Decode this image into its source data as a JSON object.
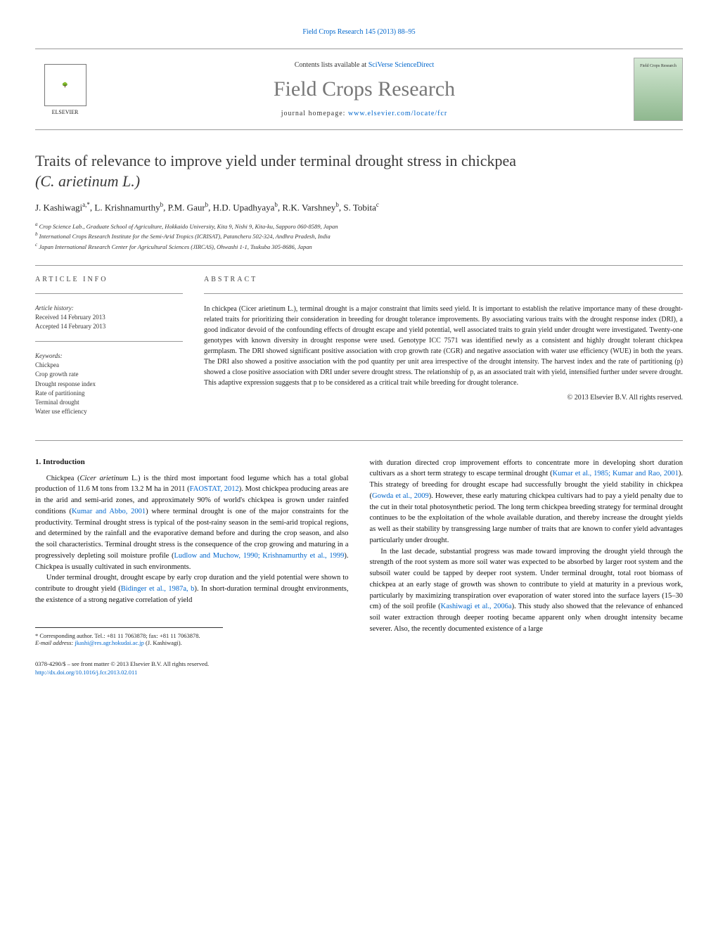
{
  "header": {
    "citation_prefix": "Field Crops Research 145 (2013) 88–95",
    "contents_text": "Contents lists available at",
    "contents_link": "SciVerse ScienceDirect",
    "journal_title": "Field Crops Research",
    "homepage_text": "journal homepage:",
    "homepage_url": "www.elsevier.com/locate/fcr",
    "publisher": "ELSEVIER",
    "cover_label": "Field Crops Research"
  },
  "article": {
    "title_line1": "Traits of relevance to improve yield under terminal drought stress in chickpea",
    "title_line2": "(C. arietinum L.)",
    "authors_html": "J. Kashiwagi",
    "author_a_sup": "a,*",
    "author_b": ", L. Krishnamurthy",
    "author_b_sup": "b",
    "author_c": ", P.M. Gaur",
    "author_c_sup": "b",
    "author_d": ", H.D. Upadhyaya",
    "author_d_sup": "b",
    "author_e": ", R.K. Varshney",
    "author_e_sup": "b",
    "author_f": ", S. Tobita",
    "author_f_sup": "c",
    "affil_a": "Crop Science Lab., Graduate School of Agriculture, Hokkaido University, Kita 9, Nishi 9, Kita-ku, Sapporo 060-8589, Japan",
    "affil_b": "International Crops Research Institute for the Semi-Arid Tropics (ICRISAT), Patancheru 502-324, Andhra Pradesh, India",
    "affil_c": "Japan International Research Center for Agricultural Sciences (JIRCAS), Ohwashi 1-1, Tsukuba 305-8686, Japan"
  },
  "article_info": {
    "heading": "ARTICLE INFO",
    "history_label": "Article history:",
    "received": "Received 14 February 2013",
    "accepted": "Accepted 14 February 2013",
    "keywords_label": "Keywords:",
    "keywords": [
      "Chickpea",
      "Crop growth rate",
      "Drought response index",
      "Rate of partitioning",
      "Terminal drought",
      "Water use efficiency"
    ]
  },
  "abstract": {
    "heading": "ABSTRACT",
    "text": "In chickpea (Cicer arietinum L.), terminal drought is a major constraint that limits seed yield. It is important to establish the relative importance many of these drought-related traits for prioritizing their consideration in breeding for drought tolerance improvements. By associating various traits with the drought response index (DRI), a good indicator devoid of the confounding effects of drought escape and yield potential, well associated traits to grain yield under drought were investigated. Twenty-one genotypes with known diversity in drought response were used. Genotype ICC 7571 was identified newly as a consistent and highly drought tolerant chickpea germplasm. The DRI showed significant positive association with crop growth rate (CGR) and negative association with water use efficiency (WUE) in both the years. The DRI also showed a positive association with the pod quantity per unit area irrespective of the drought intensity. The harvest index and the rate of partitioning (p) showed a close positive association with DRI under severe drought stress. The relationship of p, as an associated trait with yield, intensified further under severe drought. This adaptive expression suggests that p to be considered as a critical trait while breeding for drought tolerance.",
    "copyright": "© 2013 Elsevier B.V. All rights reserved."
  },
  "body": {
    "intro_heading": "1. Introduction",
    "col1_p1_a": "Chickpea (",
    "col1_p1_species": "Cicer arietinum",
    "col1_p1_b": " L.) is the third most important food legume which has a total global production of 11.6 M tons from 13.2 M ha in 2011 (",
    "col1_p1_ref1": "FAOSTAT, 2012",
    "col1_p1_c": "). Most chickpea producing areas are in the arid and semi-arid zones, and approximately 90% of world's chickpea is grown under rainfed conditions (",
    "col1_p1_ref2": "Kumar and Abbo, 2001",
    "col1_p1_d": ") where terminal drought is one of the major constraints for the productivity. Terminal drought stress is typical of the post-rainy season in the semi-arid tropical regions, and determined by the rainfall and the evaporative demand before and during the crop season, and also the soil characteristics. Terminal drought stress is the consequence of the crop growing and maturing in a progressively depleting soil moisture profile (",
    "col1_p1_ref3": "Ludlow and Muchow, 1990; Krishnamurthy et al., 1999",
    "col1_p1_e": "). Chickpea is usually cultivated in such environments.",
    "col1_p2_a": "Under terminal drought, drought escape by early crop duration and the yield potential were shown to contribute to drought yield (",
    "col1_p2_ref1": "Bidinger et al., 1987a, b",
    "col1_p2_b": "). In short-duration terminal drought environments, the existence of a strong negative correlation of yield",
    "col2_p1_a": "with duration directed crop improvement efforts to concentrate more in developing short duration cultivars as a short term strategy to escape terminal drought (",
    "col2_p1_ref1": "Kumar et al., 1985; Kumar and Rao, 2001",
    "col2_p1_b": "). This strategy of breeding for drought escape had successfully brought the yield stability in chickpea (",
    "col2_p1_ref2": "Gowda et al., 2009",
    "col2_p1_c": "). However, these early maturing chickpea cultivars had to pay a yield penalty due to the cut in their total photosynthetic period. The long term chickpea breeding strategy for terminal drought continues to be the exploitation of the whole available duration, and thereby increase the drought yields as well as their stability by transgressing large number of traits that are known to confer yield advantages particularly under drought.",
    "col2_p2_a": "In the last decade, substantial progress was made toward improving the drought yield through the strength of the root system as more soil water was expected to be absorbed by larger root system and the subsoil water could be tapped by deeper root system. Under terminal drought, total root biomass of chickpea at an early stage of growth was shown to contribute to yield at maturity in a previous work, particularly by maximizing transpiration over evaporation of water stored into the surface layers (15–30 cm) of the soil profile (",
    "col2_p2_ref1": "Kashiwagi et al., 2006a",
    "col2_p2_b": "). This study also showed that the relevance of enhanced soil water extraction through deeper rooting became apparent only when drought intensity became severer. Also, the recently documented existence of a large"
  },
  "corresponding": {
    "label": "* Corresponding author. Tel.: +81 11 7063878; fax: +81 11 7063878.",
    "email_label": "E-mail address:",
    "email": "jkashi@res.agr.hokudai.ac.jp",
    "email_name": " (J. Kashiwagi)."
  },
  "footer": {
    "issn": "0378-4290/$ – see front matter © 2013 Elsevier B.V. All rights reserved.",
    "doi_url": "http://dx.doi.org/10.1016/j.fcr.2013.02.011"
  }
}
